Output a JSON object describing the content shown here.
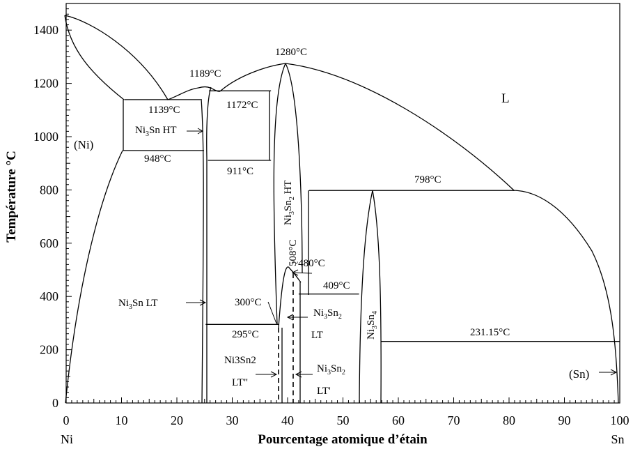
{
  "chart_data": {
    "type": "phase-diagram",
    "xlabel": "Pourcentage atomique d’étain",
    "ylabel": "Température °C",
    "xlim": [
      0,
      100
    ],
    "ylim": [
      0,
      1500
    ],
    "x_ticks": [
      "0",
      "10",
      "20",
      "30",
      "40",
      "50",
      "60",
      "70",
      "80",
      "90",
      "100"
    ],
    "y_ticks": [
      "0",
      "200",
      "400",
      "600",
      "800",
      "1000",
      "1200",
      "1400"
    ],
    "x_end_labels": {
      "left": "Ni",
      "right": "Sn"
    },
    "temperature_labels": {
      "t1139": "1139°C",
      "t1189": "1189°C",
      "t1172": "1172°C",
      "t1280": "1280°C",
      "t948": "948°C",
      "t911": "911°C",
      "t798": "798°C",
      "t508": "508°C",
      "t480": "~480°C",
      "t409": "409°C",
      "t300": "300°C",
      "t295": "295°C",
      "t231": "231.15°C"
    },
    "phase_labels": {
      "liquid": "L",
      "ni": "(Ni)",
      "sn": "(Sn)",
      "ni3sn_ht": {
        "base": "Ni",
        "s1": "3",
        "mid": "Sn HT"
      },
      "ni3sn_lt": {
        "base": "Ni",
        "s1": "3",
        "mid": "Sn LT"
      },
      "ni3sn2_ht": {
        "base": "Ni",
        "s1": "3",
        "mid": "Sn",
        "s2": "2",
        "tail": " HT"
      },
      "ni3sn2_lt": {
        "base": "Ni",
        "s1": "3",
        "mid": "Sn",
        "s2": "2",
        "line2": "LT"
      },
      "ni3sn2_ltp": {
        "base": "Ni",
        "s1": "3",
        "mid": "Sn",
        "s2": "2",
        "line2": "LT'"
      },
      "ni3sn2_ltpp": {
        "line1": "Ni3Sn2",
        "line2": "LT\""
      },
      "ni3sn4": {
        "base": "Ni",
        "s1": "3",
        "mid": "Sn",
        "s2": "4"
      }
    },
    "invariants": [
      {
        "temperature": 1139,
        "from_x": 10.5,
        "to_x": 24.3
      },
      {
        "temperature": 948,
        "from_x": 10.2,
        "to_x": 24.9
      },
      {
        "temperature": 1172,
        "from_x": 25.8,
        "to_x": 37.0
      },
      {
        "temperature": 911,
        "from_x": 25.6,
        "to_x": 37.0
      },
      {
        "temperature": 798,
        "from_x": 43.9,
        "to_x": 81.0
      },
      {
        "temperature": 409,
        "from_x": 42.0,
        "to_x": 52.9
      },
      {
        "temperature": 295,
        "from_x": 25.2,
        "to_x": 38.5
      },
      {
        "temperature": 231.15,
        "from_x": 56.9,
        "to_x": 100
      }
    ]
  }
}
